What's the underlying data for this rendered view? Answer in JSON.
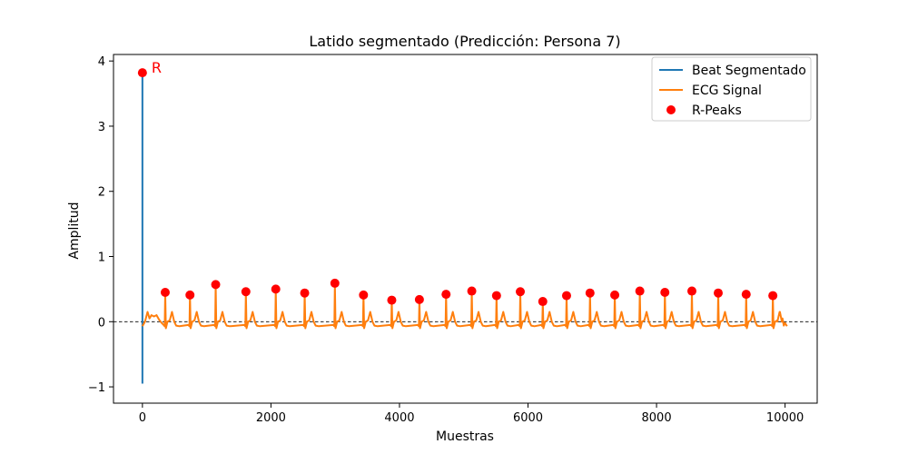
{
  "chart_data": {
    "type": "line",
    "title": "Latido segmentado (Predicción: Persona 7)",
    "xlabel": "Muestras",
    "ylabel": "Amplitud",
    "xlim": [
      -450,
      10500
    ],
    "ylim": [
      -1.25,
      4.1
    ],
    "xticks": [
      0,
      2000,
      4000,
      6000,
      8000,
      10000
    ],
    "yticks": [
      -1,
      0,
      1,
      2,
      3,
      4
    ],
    "ytick_labels": [
      "−1",
      "0",
      "1",
      "2",
      "3",
      "4"
    ],
    "grid": false,
    "legend": "top-right",
    "zero_line": {
      "y": 0,
      "style": "dashed",
      "color": "#000000"
    },
    "series": [
      {
        "name": "Beat Segmentado",
        "color": "#1f77b4",
        "x": [
          0,
          0,
          0,
          0,
          0
        ],
        "y": [
          -0.6,
          3.82,
          0.0,
          -0.95,
          -0.6
        ]
      },
      {
        "name": "ECG Signal",
        "color": "#ff7f0e",
        "baseline": -0.07,
        "peaks_x": [
          355,
          740,
          1140,
          1610,
          2075,
          2525,
          2995,
          3440,
          3880,
          4310,
          4725,
          5125,
          5510,
          5880,
          6230,
          6600,
          6965,
          7350,
          7740,
          8130,
          8550,
          8960,
          9395,
          9810
        ],
        "peaks_y": [
          0.45,
          0.41,
          0.57,
          0.46,
          0.5,
          0.44,
          0.59,
          0.41,
          0.33,
          0.34,
          0.42,
          0.47,
          0.4,
          0.46,
          0.31,
          0.4,
          0.44,
          0.41,
          0.47,
          0.45,
          0.47,
          0.44,
          0.42,
          0.4
        ],
        "end_x": 10000
      },
      {
        "name": "R-Peaks",
        "type": "scatter",
        "color": "#ff0000",
        "x": [
          0,
          355,
          740,
          1140,
          1610,
          2075,
          2525,
          2995,
          3440,
          3880,
          4310,
          4725,
          5125,
          5510,
          5880,
          6230,
          6600,
          6965,
          7350,
          7740,
          8130,
          8550,
          8960,
          9395,
          9810
        ],
        "y": [
          3.82,
          0.45,
          0.41,
          0.57,
          0.46,
          0.5,
          0.44,
          0.59,
          0.41,
          0.33,
          0.34,
          0.42,
          0.47,
          0.4,
          0.46,
          0.31,
          0.4,
          0.44,
          0.41,
          0.47,
          0.45,
          0.47,
          0.44,
          0.42,
          0.4
        ]
      }
    ],
    "annotations": [
      {
        "text": "R",
        "x": 0,
        "y": 3.82,
        "color": "#ff0000"
      }
    ]
  }
}
